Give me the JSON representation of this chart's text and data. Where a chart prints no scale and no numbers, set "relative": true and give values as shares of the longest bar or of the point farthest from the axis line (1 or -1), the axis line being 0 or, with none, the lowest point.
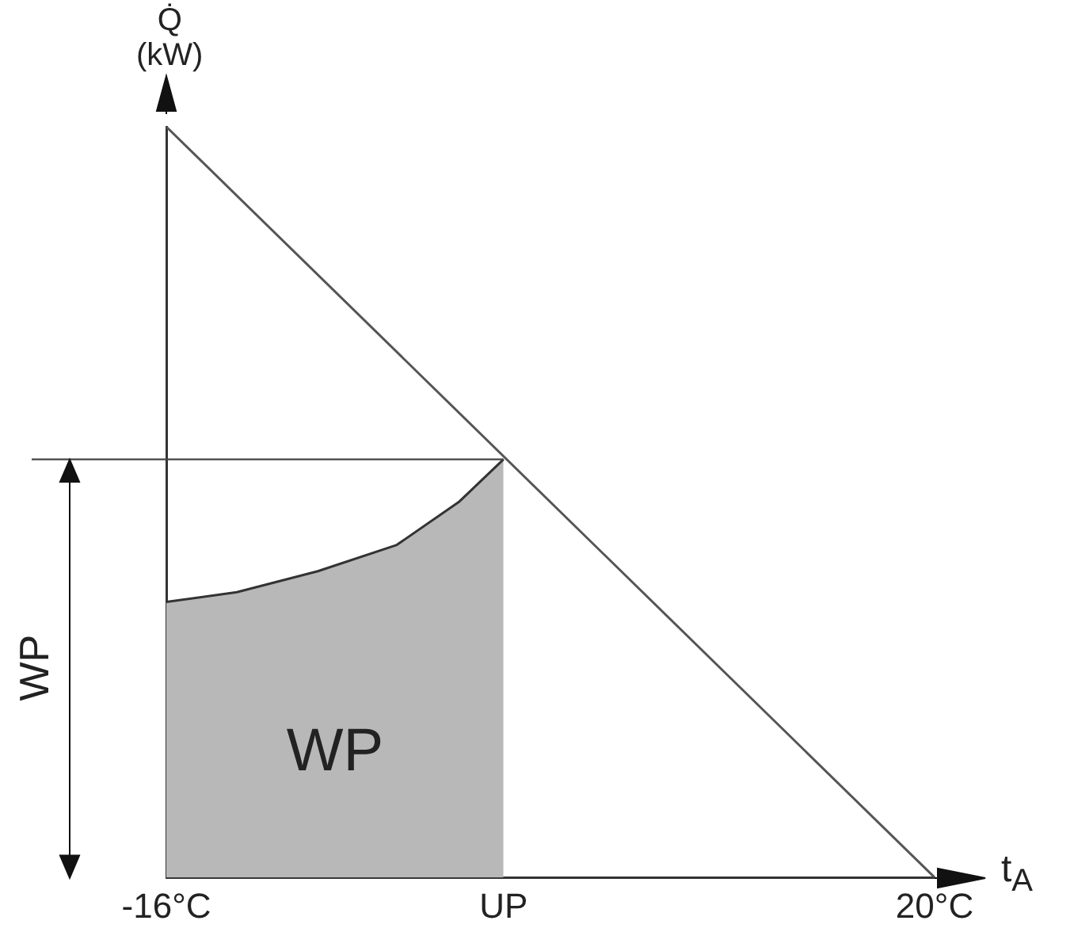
{
  "chart_data": {
    "type": "line",
    "relative": true,
    "xlabel": "t$_{A}$",
    "ylabel": "Q̇\n(kW)",
    "xlim": [
      -16,
      20
    ],
    "xticks": [
      {
        "value": -16,
        "label": "-16°C"
      },
      {
        "value": -0.2,
        "label": "UP"
      },
      {
        "value": 20,
        "label": "20°C"
      }
    ],
    "tick_labels": "x",
    "grid": false,
    "legend": false,
    "marker": "none",
    "series": [
      {
        "type": "line",
        "color": "#555555",
        "x": [
          -16,
          20
        ],
        "values": [
          1,
          0
        ]
      },
      {
        "type": "area",
        "name": "WP",
        "color": "#b8b8b8",
        "x": [
          -16,
          -12.7,
          -8.9,
          -5.2,
          -2.3,
          -0.2
        ],
        "values": [
          0.367,
          0.38,
          0.408,
          0.443,
          0.5,
          0.557
        ]
      }
    ],
    "ref_lines": [
      {
        "axis": "y",
        "value": 0.557
      }
    ],
    "annotations": [
      "WP"
    ]
  }
}
